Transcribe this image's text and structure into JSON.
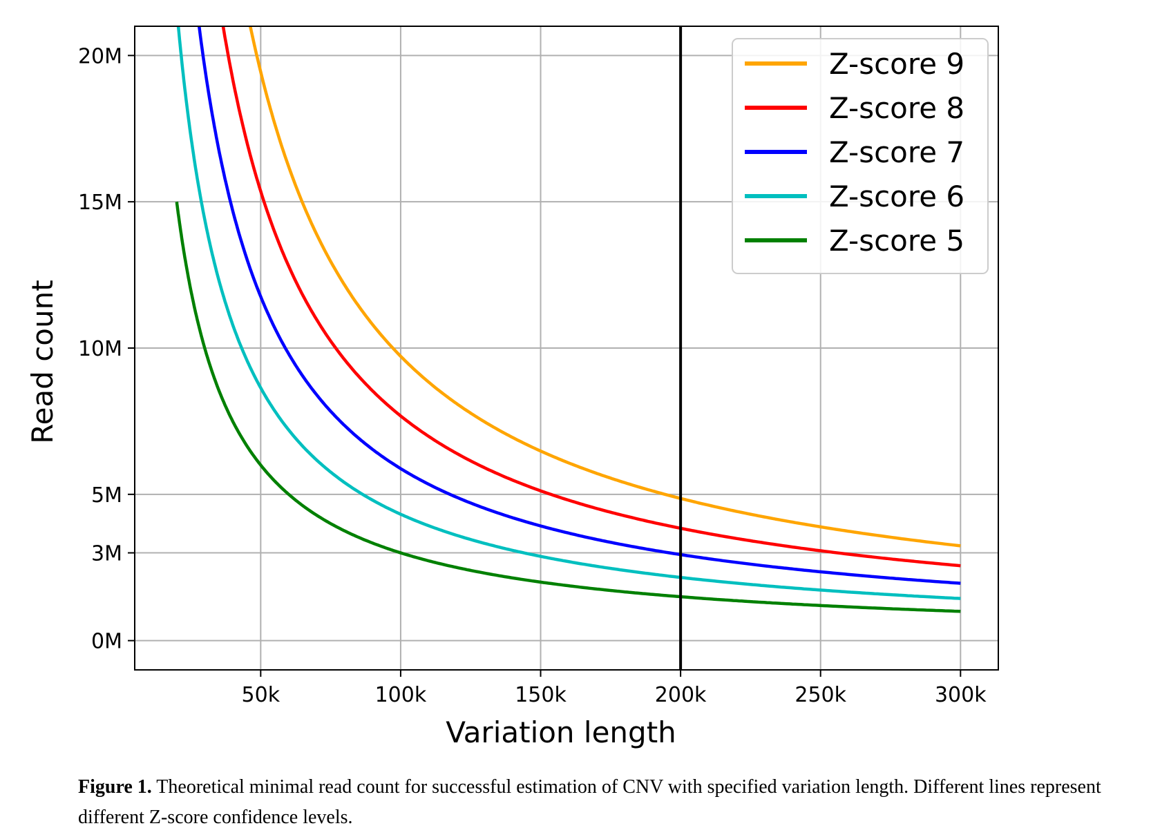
{
  "chart_data": {
    "type": "line",
    "title": "",
    "xlabel": "Variation length",
    "ylabel": "Read count",
    "xlim": [
      5000,
      313500
    ],
    "ylim": [
      -1000000,
      21000000
    ],
    "x_ticks": [
      50000,
      100000,
      150000,
      200000,
      250000,
      300000
    ],
    "x_tick_labels": [
      "50k",
      "100k",
      "150k",
      "200k",
      "250k",
      "300k"
    ],
    "y_ticks": [
      0,
      3000000,
      5000000,
      10000000,
      15000000,
      20000000
    ],
    "y_tick_labels": [
      "0M",
      "3M",
      "5M",
      "10M",
      "15M",
      "20M"
    ],
    "grid": true,
    "legend_position": "top-right",
    "vertical_line_x": 200000,
    "x_start": 20000,
    "x_end": 300000,
    "series": [
      {
        "name": "Z-score 9",
        "color": "#ffa500",
        "k": 972000000000
      },
      {
        "name": "Z-score 8",
        "color": "#ff0000",
        "k": 768000000000
      },
      {
        "name": "Z-score 7",
        "color": "#0000ff",
        "k": 588000000000
      },
      {
        "name": "Z-score 6",
        "color": "#00bfbf",
        "k": 432000000000
      },
      {
        "name": "Z-score 5",
        "color": "#008000",
        "k": 300000000000
      }
    ],
    "series_formula": "read_count = k / variation_length"
  },
  "caption": {
    "label": "Figure 1.",
    "text": " Theoretical minimal read count for successful estimation of CNV with specified variation length. Different lines represent different Z-score confidence levels."
  }
}
